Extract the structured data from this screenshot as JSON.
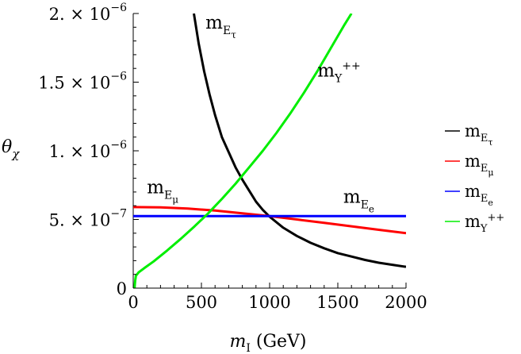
{
  "chart_data": {
    "type": "line",
    "title": "",
    "xlabel": "m_I (GeV)",
    "xlabel_base": "m",
    "xlabel_sub": "I",
    "xlabel_unit": " (GeV)",
    "ylabel": "θ_χ",
    "ylabel_base": "θ",
    "ylabel_sub": "χ",
    "xlim": [
      0,
      2000
    ],
    "ylim": [
      0,
      2e-06
    ],
    "x_ticks": [
      {
        "value": 0,
        "label": "0"
      },
      {
        "value": 500,
        "label": "500"
      },
      {
        "value": 1000,
        "label": "1000"
      },
      {
        "value": 1500,
        "label": "1500"
      },
      {
        "value": 2000,
        "label": "2000"
      }
    ],
    "y_ticks": [
      {
        "value": 0,
        "mant": "0",
        "exp": ""
      },
      {
        "value": 5e-07,
        "mant": "5. × 10",
        "exp": "−7"
      },
      {
        "value": 1e-06,
        "mant": "1. × 10",
        "exp": "−6"
      },
      {
        "value": 1.5e-06,
        "mant": "1.5 × 10",
        "exp": "−6"
      },
      {
        "value": 2e-06,
        "mant": "2. × 10",
        "exp": "−6"
      }
    ],
    "series": [
      {
        "name": "m_Eτ",
        "base": "m",
        "sub": "E",
        "subsub": "τ",
        "sup": "",
        "color": "#000000",
        "x": [
          445,
          480,
          520,
          560,
          600,
          650,
          700,
          750,
          800,
          850,
          900,
          950,
          1000,
          1100,
          1200,
          1300,
          1400,
          1500,
          1600,
          1700,
          1800,
          1900,
          2000
        ],
        "y": [
          2e-06,
          1.78e-06,
          1.58e-06,
          1.41e-06,
          1.26e-06,
          1.1e-06,
          9.9e-07,
          8.8e-07,
          7.9e-07,
          7.1e-07,
          6.3e-07,
          5.7e-07,
          5.2e-07,
          4.4e-07,
          3.8e-07,
          3.3e-07,
          2.9e-07,
          2.55e-07,
          2.3e-07,
          2.05e-07,
          1.85e-07,
          1.7e-07,
          1.55e-07
        ]
      },
      {
        "name": "m_Eμ",
        "base": "m",
        "sub": "E",
        "subsub": "μ",
        "sup": "",
        "color": "#ff0000",
        "x": [
          0,
          200,
          400,
          600,
          800,
          1000,
          1200,
          1400,
          1600,
          1800,
          2000
        ],
        "y": [
          5.9e-07,
          5.88e-07,
          5.8e-07,
          5.65e-07,
          5.45e-07,
          5.25e-07,
          5e-07,
          4.75e-07,
          4.5e-07,
          4.25e-07,
          4e-07
        ]
      },
      {
        "name": "m_Ee",
        "base": "m",
        "sub": "E",
        "subsub": "e",
        "sup": "",
        "color": "#0000ff",
        "x": [
          0,
          2000
        ],
        "y": [
          5.25e-07,
          5.25e-07
        ]
      },
      {
        "name": "m_Y++",
        "base": "m",
        "sub": "Y",
        "subsub": "",
        "sup": "++",
        "color": "#00ee00",
        "x": [
          10,
          12,
          15,
          20,
          40,
          80,
          150,
          250,
          350,
          450,
          550,
          650,
          750,
          850,
          950,
          1050,
          1150,
          1250,
          1350,
          1450,
          1550,
          1600
        ],
        "y": [
          0,
          3e-08,
          6e-08,
          9e-08,
          1.15e-07,
          1.45e-07,
          1.95e-07,
          2.75e-07,
          3.6e-07,
          4.5e-07,
          5.45e-07,
          6.5e-07,
          7.6e-07,
          8.8e-07,
          1e-06,
          1.13e-06,
          1.27e-06,
          1.42e-06,
          1.58e-06,
          1.75e-06,
          1.92e-06,
          2e-06
        ]
      }
    ],
    "annotations": [
      {
        "series": "m_Eτ",
        "x": 530,
        "y": 1.89e-06
      },
      {
        "series": "m_Y++",
        "x": 1350,
        "y": 1.54e-06
      },
      {
        "series": "m_Eμ",
        "x": 100,
        "y": 6.9e-07
      },
      {
        "series": "m_Ee",
        "x": 1540,
        "y": 6.2e-07
      }
    ],
    "legend_position": "right"
  }
}
